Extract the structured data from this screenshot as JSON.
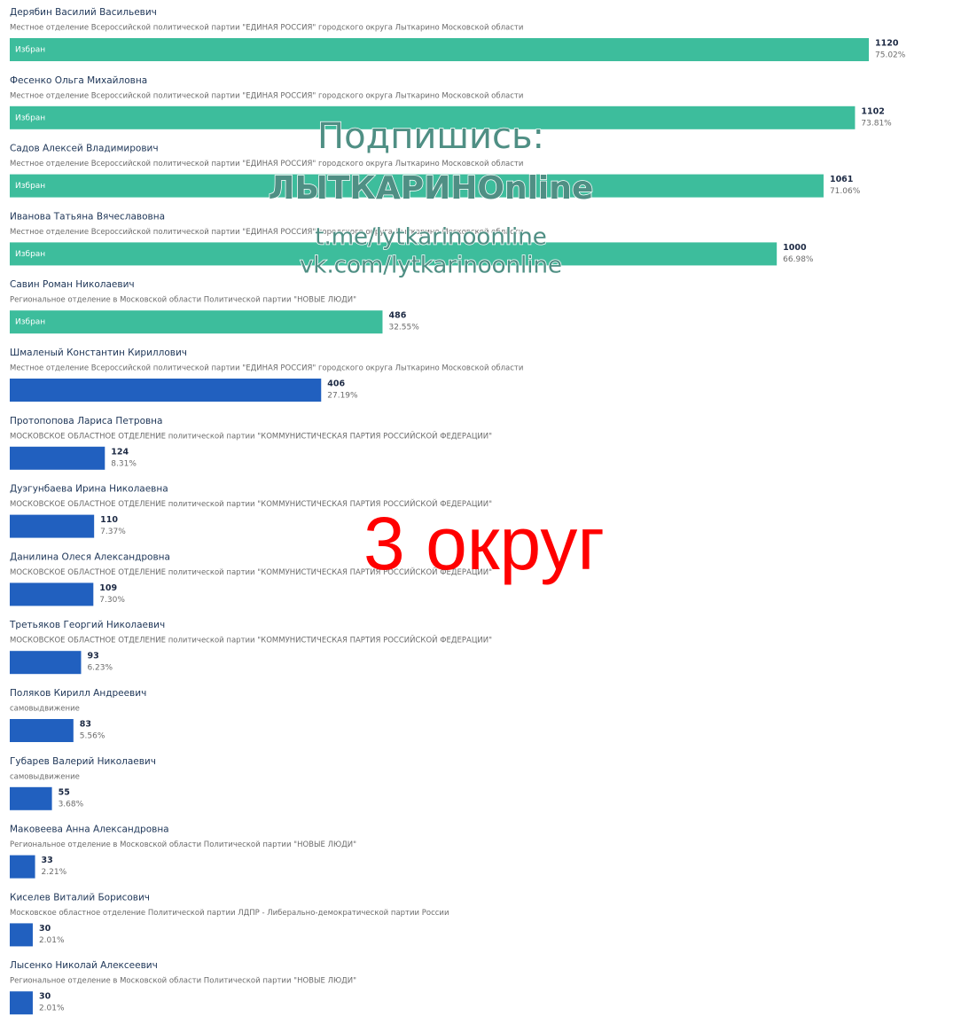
{
  "chart_data": {
    "type": "bar",
    "orientation": "horizontal",
    "categories": [
      "Дерябин Василий Васильевич",
      "Фесенко Ольга Михайловна",
      "Садов Алексей Владимирович",
      "Иванова Татьяна Вячеславовна",
      "Савин Роман Николаевич",
      "Шмаленый Константин Кириллович",
      "Протопопова Лариса Петровна",
      "Дуэгунбаева Ирина Николаевна",
      "Данилина Олеся Александровна",
      "Третьяков Георгий Николаевич",
      "Поляков Кирилл Андреевич",
      "Губарев Валерий Николаевич",
      "Маковеева Анна Александровна",
      "Киселев Виталий Борисович",
      "Лысенко Николай Алексеевич"
    ],
    "parties": [
      "Местное отделение Всероссийской политической партии \"ЕДИНАЯ РОССИЯ\" городского округа Лыткарино Московской области",
      "Местное отделение Всероссийской политической партии \"ЕДИНАЯ РОССИЯ\" городского округа Лыткарино Московской области",
      "Местное отделение Всероссийской политической партии \"ЕДИНАЯ РОССИЯ\" городского округа Лыткарино Московской области",
      "Местное отделение Всероссийской политической партии \"ЕДИНАЯ РОССИЯ\" городского округа Лыткарино Московской области",
      "Региональное отделение в Московской области Политической партии \"НОВЫЕ ЛЮДИ\"",
      "Местное отделение Всероссийской политической партии \"ЕДИНАЯ РОССИЯ\" городского округа Лыткарино Московской области",
      "МОСКОВСКОЕ ОБЛАСТНОЕ ОТДЕЛЕНИЕ политической партии \"КОММУНИСТИЧЕСКАЯ ПАРТИЯ РОССИЙСКОЙ ФЕДЕРАЦИИ\"",
      "МОСКОВСКОЕ ОБЛАСТНОЕ ОТДЕЛЕНИЕ политической партии \"КОММУНИСТИЧЕСКАЯ ПАРТИЯ РОССИЙСКОЙ ФЕДЕРАЦИИ\"",
      "МОСКОВСКОЕ ОБЛАСТНОЕ ОТДЕЛЕНИЕ политической партии \"КОММУНИСТИЧЕСКАЯ ПАРТИЯ РОССИЙСКОЙ ФЕДЕРАЦИИ\"",
      "МОСКОВСКОЕ ОБЛАСТНОЕ ОТДЕЛЕНИЕ политической партии \"КОММУНИСТИЧЕСКАЯ ПАРТИЯ РОССИЙСКОЙ ФЕДЕРАЦИИ\"",
      "самовыдвижение",
      "самовыдвижение",
      "Региональное отделение в Московской области Политической партии \"НОВЫЕ ЛЮДИ\"",
      "Московское областное отделение Политической партии ЛДПР - Либерально-демократической партии России",
      "Региональное отделение в Московской области Политической партии \"НОВЫЕ ЛЮДИ\""
    ],
    "statuses": [
      "Избран",
      "Избран",
      "Избран",
      "Избран",
      "Избран",
      null,
      null,
      null,
      null,
      null,
      null,
      null,
      null,
      null,
      null
    ],
    "values": [
      1120,
      1102,
      1061,
      1000,
      486,
      406,
      124,
      110,
      109,
      93,
      83,
      55,
      33,
      30,
      30
    ],
    "percent_labels": [
      "75.02%",
      "73.81%",
      "71.06%",
      "66.98%",
      "32.55%",
      "27.19%",
      "8.31%",
      "7.37%",
      "7.30%",
      "6.23%",
      "5.56%",
      "3.68%",
      "2.21%",
      "2.01%",
      "2.01%"
    ],
    "colors": {
      "elected": "#3dbd9c",
      "other": "#2160bf"
    },
    "annotations": [
      "Подпишись:",
      "ЛЫТКАРИНОnline",
      "t.me/lytkarinoonline",
      "vk.com/lytkarinoonline",
      "3 округ"
    ]
  }
}
